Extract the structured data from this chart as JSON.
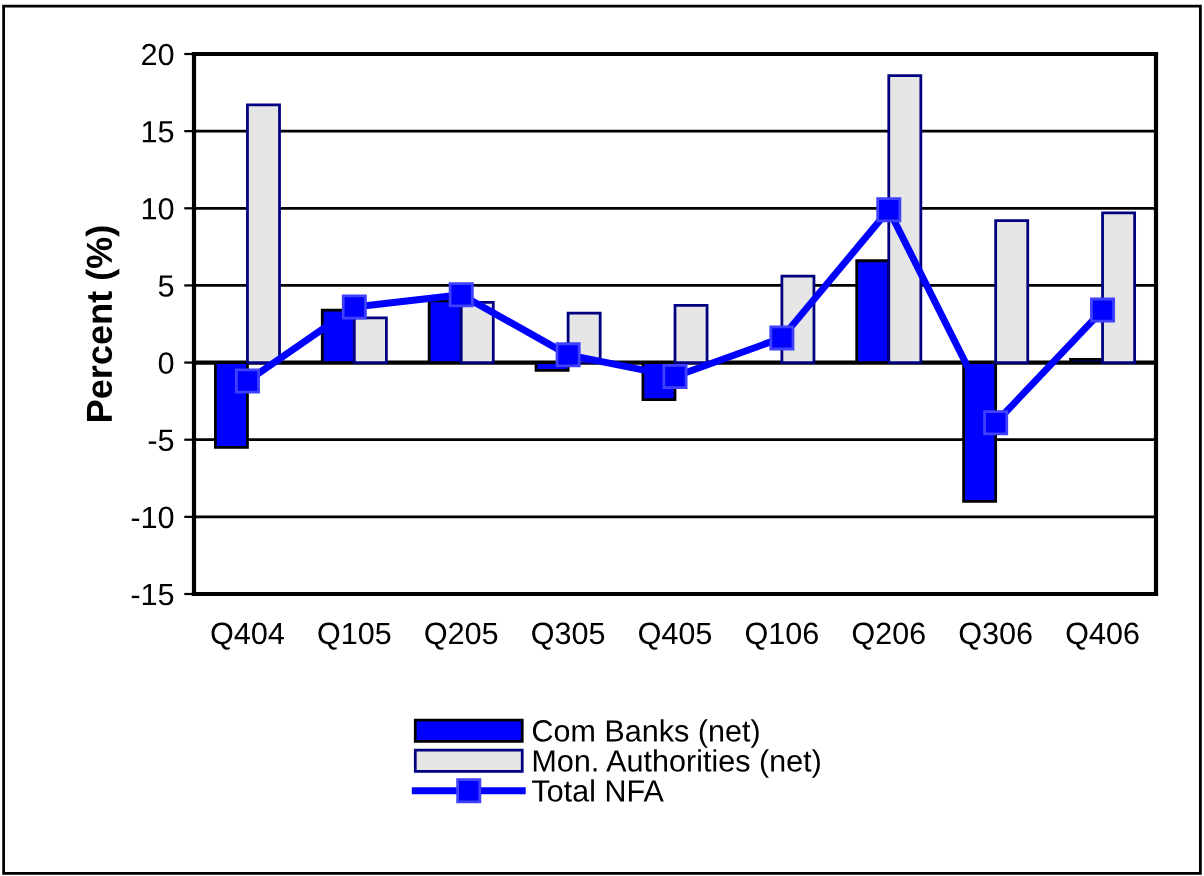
{
  "chart_data": {
    "type": "bar",
    "ylabel": "Percent (%)",
    "categories": [
      "Q404",
      "Q105",
      "Q205",
      "Q305",
      "Q405",
      "Q106",
      "Q206",
      "Q306",
      "Q406"
    ],
    "series": [
      {
        "name": "Com Banks (net)",
        "color": "#0000ff",
        "values": [
          -5.5,
          3.4,
          4.0,
          -0.5,
          -2.4,
          null,
          6.6,
          -9.0,
          0.2
        ]
      },
      {
        "name": "Mon. Authorities (net)",
        "color": "#e6e6e6",
        "values": [
          16.7,
          2.9,
          3.9,
          3.2,
          3.7,
          5.6,
          18.6,
          9.2,
          9.7
        ]
      },
      {
        "name": "Total NFA",
        "type": "line",
        "color": "#0000ff",
        "marker": "square",
        "values": [
          -1.2,
          3.6,
          4.4,
          0.5,
          -0.9,
          1.6,
          9.9,
          -3.9,
          3.4
        ]
      }
    ],
    "ylim": [
      -15,
      20
    ],
    "yticks": [
      -15,
      -10,
      -5,
      0,
      5,
      10,
      15,
      20
    ],
    "grid": "y",
    "legend": "bottom"
  }
}
